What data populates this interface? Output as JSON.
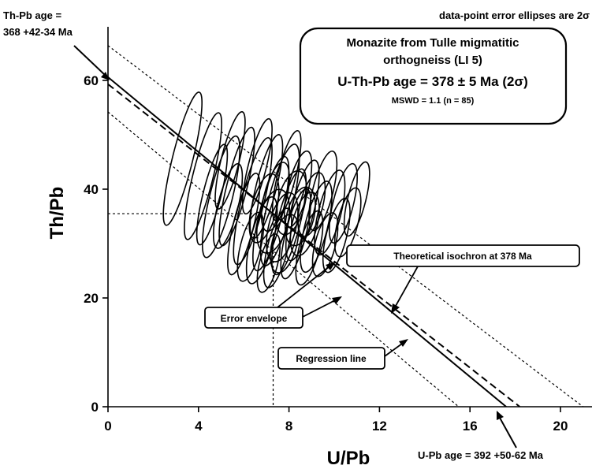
{
  "chart_data": {
    "type": "scatter",
    "xlabel": "U/Pb",
    "ylabel": "Th/Pb",
    "xlim": [
      0,
      22
    ],
    "ylim": [
      0,
      70
    ],
    "x_ticks": [
      0,
      4,
      8,
      12,
      16,
      20
    ],
    "y_ticks": [
      0,
      20,
      40,
      60
    ],
    "grid": false,
    "corner_note": "data-point error ellipses are 2σ",
    "title_box": {
      "line1": "Monazite from Tulle migmatitic",
      "line2": "orthogneiss (LI 5)",
      "line3": "U-Th-Pb age = 378 ± 5 Ma (2σ)",
      "line4": "MSWD = 1.1 (n = 85)"
    },
    "annotations": {
      "thpb_age_line1": "Th-Pb age =",
      "thpb_age_line2": "368 +42-34 Ma",
      "upb_age": "U-Pb age = 392 +50-62 Ma",
      "theoretical_isochron": "Theoretical isochron at 378 Ma",
      "error_envelope": "Error envelope",
      "regression_line": "Regression line"
    },
    "lines": {
      "regression": {
        "x": [
          0,
          17.6
        ],
        "y": [
          60.6,
          0
        ]
      },
      "theoretical_isochron": {
        "x": [
          0,
          18.2
        ],
        "y": [
          59.3,
          0
        ]
      },
      "envelope_upper": {
        "x": [
          0,
          21
        ],
        "y": [
          66.4,
          0
        ]
      },
      "envelope_lower": {
        "x": [
          0,
          15.5
        ],
        "y": [
          54.2,
          0
        ]
      }
    },
    "centroid": {
      "x": 7.3,
      "y": 35.5
    },
    "ellipses": [
      {
        "cx": 3.3,
        "cy": 45.6,
        "rx": 0.45,
        "ry": 12.6,
        "tilt": 14
      },
      {
        "cx": 4.2,
        "cy": 42.4,
        "rx": 0.45,
        "ry": 12.0,
        "tilt": 14
      },
      {
        "cx": 5.0,
        "cy": 38.6,
        "rx": 0.5,
        "ry": 11.5,
        "tilt": 14
      },
      {
        "cx": 5.7,
        "cy": 40.5,
        "rx": 0.45,
        "ry": 11.2,
        "tilt": 14
      },
      {
        "cx": 6.4,
        "cy": 37.8,
        "rx": 0.5,
        "ry": 12.0,
        "tilt": 14
      },
      {
        "cx": 7.2,
        "cy": 35.5,
        "rx": 0.5,
        "ry": 10.8,
        "tilt": 14
      },
      {
        "cx": 7.6,
        "cy": 37.1,
        "rx": 0.55,
        "ry": 11.5,
        "tilt": 14
      },
      {
        "cx": 8.0,
        "cy": 34.0,
        "rx": 0.5,
        "ry": 10.0,
        "tilt": 14
      },
      {
        "cx": 8.6,
        "cy": 36.1,
        "rx": 0.5,
        "ry": 9.5,
        "tilt": 14
      },
      {
        "cx": 9.2,
        "cy": 33.1,
        "rx": 0.5,
        "ry": 8.6,
        "tilt": 14
      },
      {
        "cx": 6.8,
        "cy": 30.6,
        "rx": 0.5,
        "ry": 8.2,
        "tilt": 14
      },
      {
        "cx": 7.5,
        "cy": 29.2,
        "rx": 0.45,
        "ry": 7.5,
        "tilt": 14
      },
      {
        "cx": 8.3,
        "cy": 31.8,
        "rx": 0.45,
        "ry": 8.5,
        "tilt": 14
      },
      {
        "cx": 9.8,
        "cy": 35.7,
        "rx": 0.5,
        "ry": 8.0,
        "tilt": 14
      },
      {
        "cx": 10.4,
        "cy": 37.4,
        "rx": 0.45,
        "ry": 7.5,
        "tilt": 14
      },
      {
        "cx": 11.0,
        "cy": 38.2,
        "rx": 0.4,
        "ry": 7.0,
        "tilt": 14
      },
      {
        "cx": 6.0,
        "cy": 33.6,
        "rx": 0.45,
        "ry": 9.6,
        "tilt": 14
      },
      {
        "cx": 7.0,
        "cy": 40.5,
        "rx": 0.45,
        "ry": 9.8,
        "tilt": 14
      },
      {
        "cx": 8.9,
        "cy": 29.2,
        "rx": 0.45,
        "ry": 7.0,
        "tilt": 14
      },
      {
        "cx": 7.9,
        "cy": 42.5,
        "rx": 0.4,
        "ry": 8.5,
        "tilt": 14
      },
      {
        "cx": 6.6,
        "cy": 44.2,
        "rx": 0.4,
        "ry": 9.0,
        "tilt": 14
      },
      {
        "cx": 5.4,
        "cy": 45.3,
        "rx": 0.4,
        "ry": 9.2,
        "tilt": 14
      },
      {
        "cx": 9.5,
        "cy": 39.7,
        "rx": 0.45,
        "ry": 7.5,
        "tilt": 14
      },
      {
        "cx": 10.1,
        "cy": 31.5,
        "rx": 0.45,
        "ry": 7.0,
        "tilt": 14
      },
      {
        "cx": 7.1,
        "cy": 26.4,
        "rx": 0.4,
        "ry": 5.5,
        "tilt": 14
      },
      {
        "cx": 8.4,
        "cy": 40.0,
        "rx": 0.45,
        "ry": 7.2,
        "tilt": 14
      },
      {
        "cx": 7.7,
        "cy": 33.0,
        "rx": 0.6,
        "ry": 6.5,
        "tilt": 14
      },
      {
        "cx": 8.1,
        "cy": 37.5,
        "rx": 0.6,
        "ry": 6.0,
        "tilt": 14
      },
      {
        "cx": 6.9,
        "cy": 36.5,
        "rx": 0.55,
        "ry": 6.5,
        "tilt": 14
      },
      {
        "cx": 8.7,
        "cy": 33.6,
        "rx": 0.55,
        "ry": 6.0,
        "tilt": 14
      },
      {
        "cx": 9.0,
        "cy": 37.2,
        "rx": 0.5,
        "ry": 6.0,
        "tilt": 14
      },
      {
        "cx": 7.4,
        "cy": 38.6,
        "rx": 0.5,
        "ry": 6.5,
        "tilt": 14
      },
      {
        "cx": 6.3,
        "cy": 29.4,
        "rx": 0.45,
        "ry": 6.5,
        "tilt": 14
      },
      {
        "cx": 9.6,
        "cy": 29.8,
        "rx": 0.45,
        "ry": 6.0,
        "tilt": 14
      },
      {
        "cx": 10.6,
        "cy": 33.9,
        "rx": 0.45,
        "ry": 6.5,
        "tilt": 14
      },
      {
        "cx": 5.3,
        "cy": 36.9,
        "rx": 0.45,
        "ry": 8.0,
        "tilt": 14
      },
      {
        "cx": 4.6,
        "cy": 39.0,
        "rx": 0.4,
        "ry": 9.5,
        "tilt": 14
      },
      {
        "cx": 7.8,
        "cy": 30.0,
        "rx": 0.55,
        "ry": 5.5,
        "tilt": 14
      },
      {
        "cx": 8.5,
        "cy": 35.0,
        "rx": 0.6,
        "ry": 5.5,
        "tilt": 14
      },
      {
        "cx": 7.3,
        "cy": 34.1,
        "rx": 0.65,
        "ry": 6.0,
        "tilt": 14
      }
    ]
  }
}
